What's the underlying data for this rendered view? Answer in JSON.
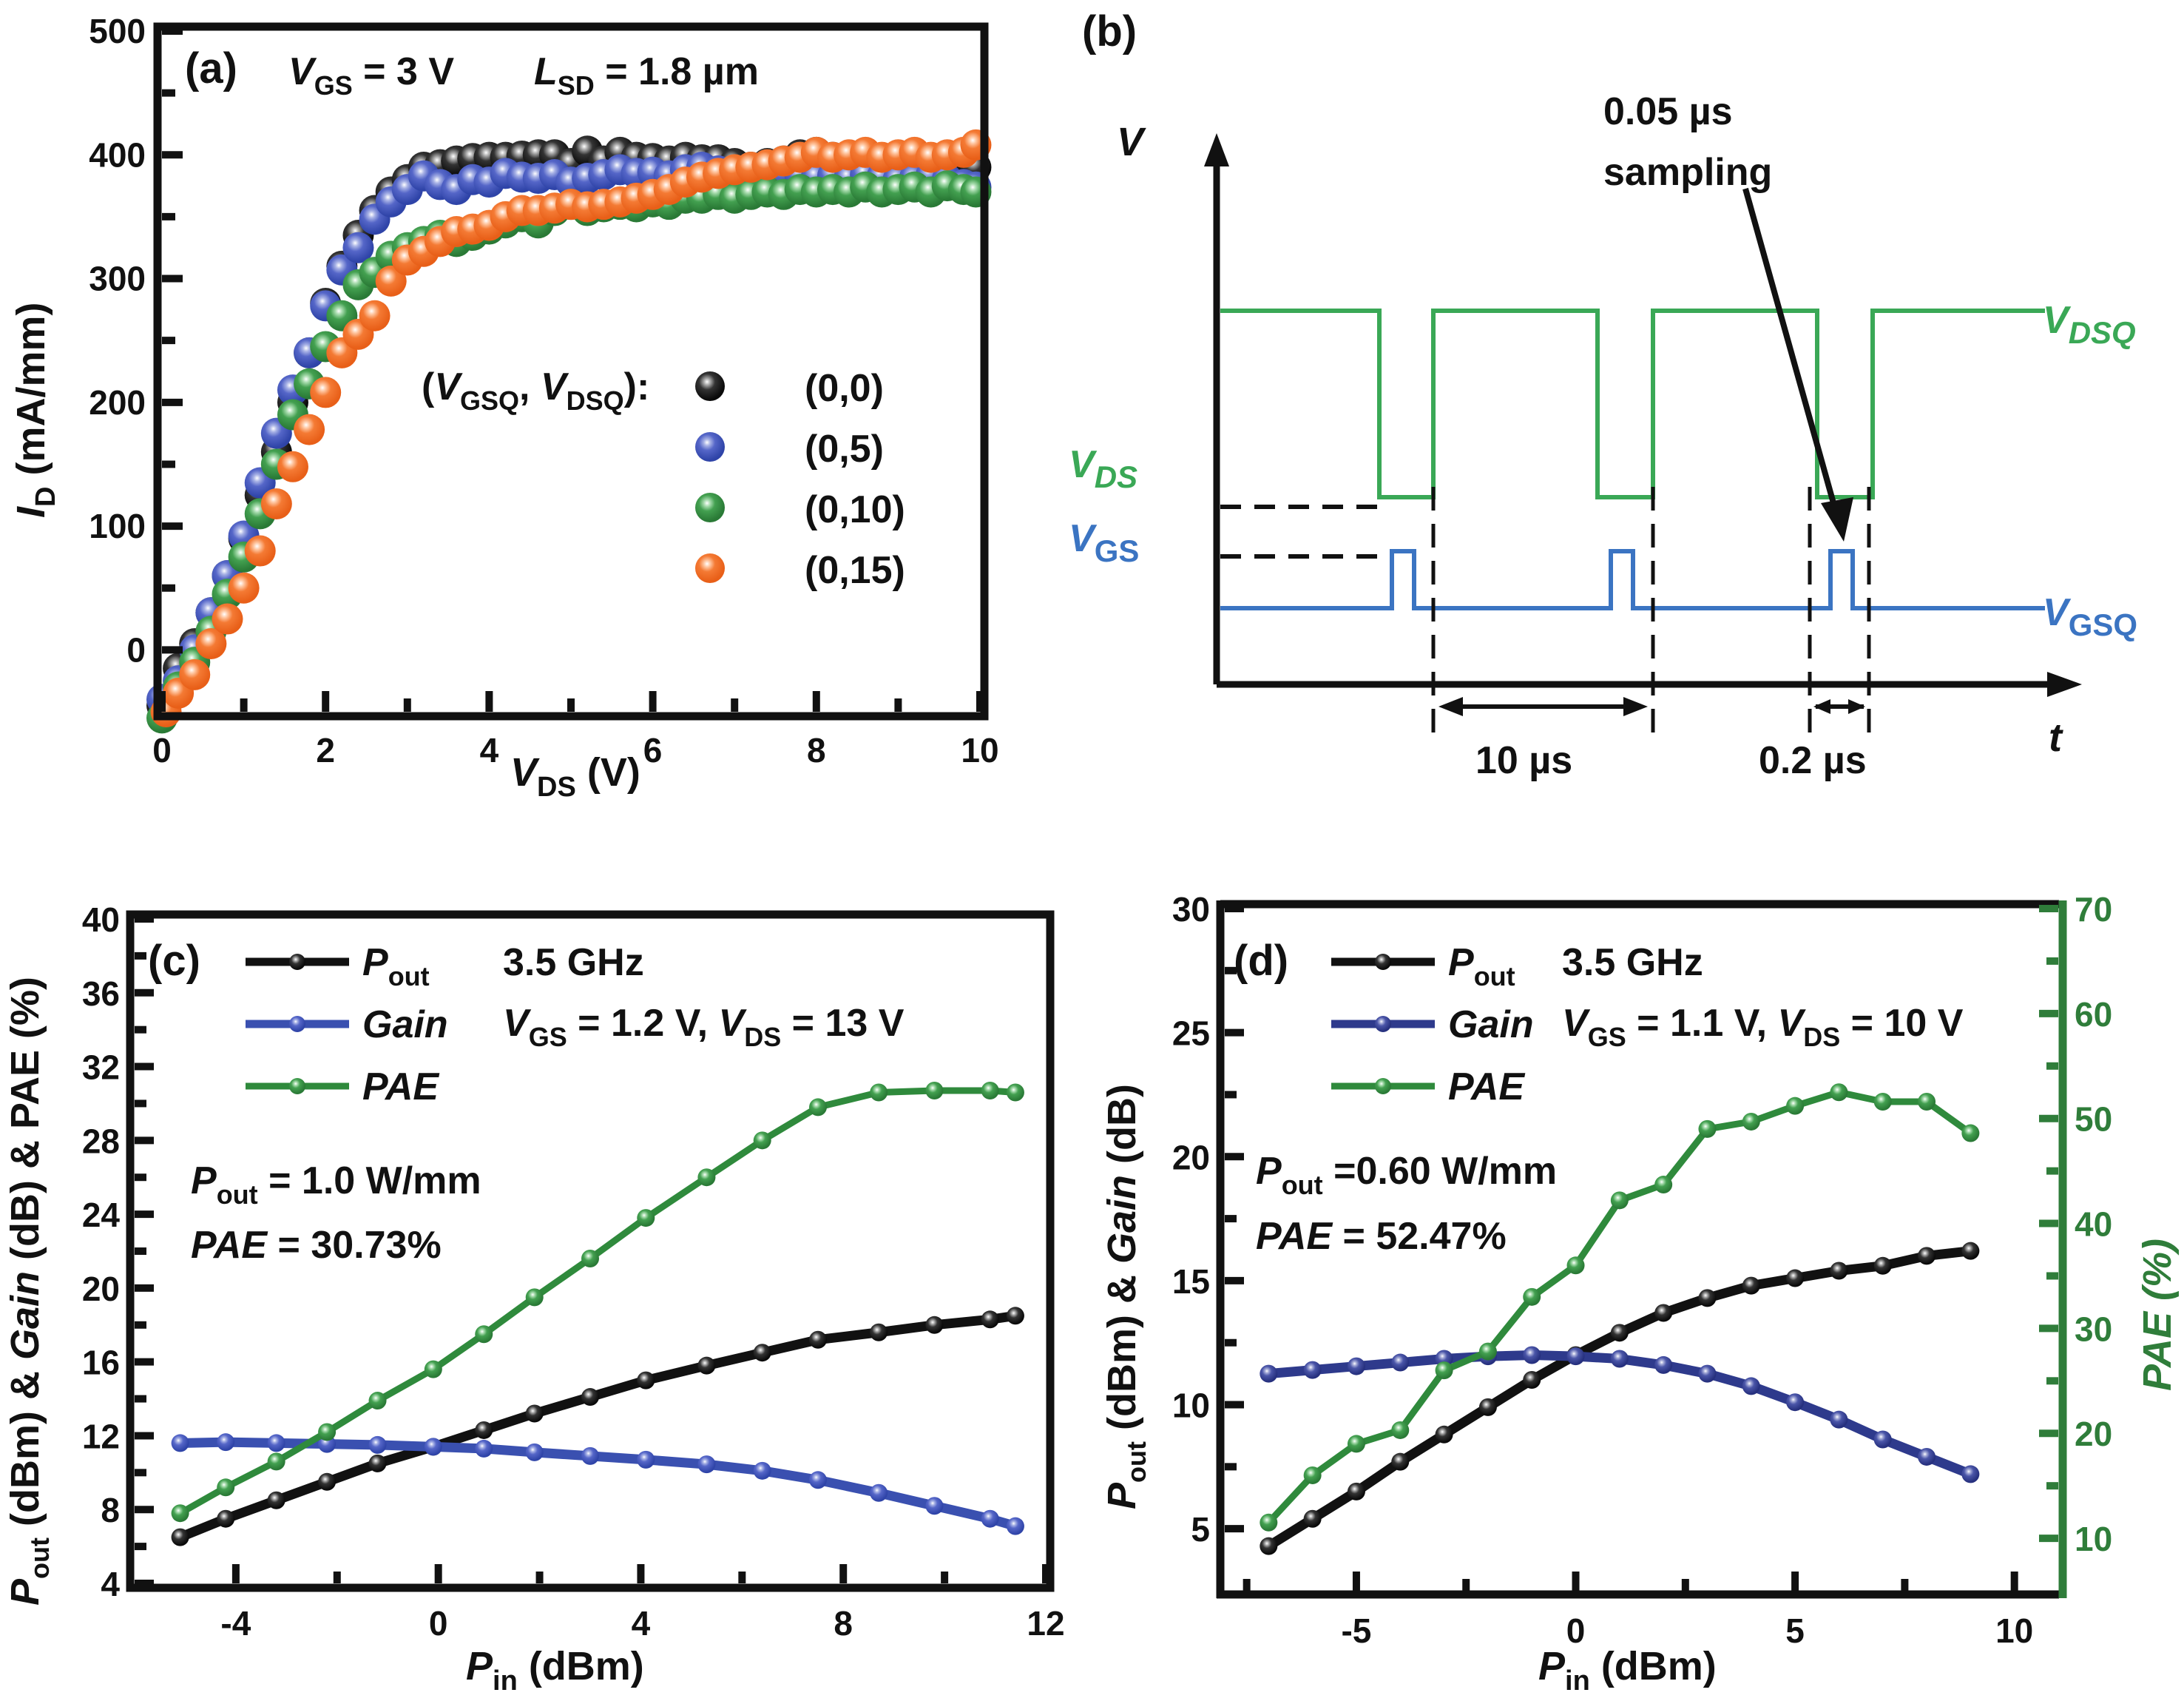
{
  "figure": {
    "panels": [
      {
        "id": "a",
        "label": "(a)"
      },
      {
        "id": "b",
        "label": "(b)"
      },
      {
        "id": "c",
        "label": "(c)"
      },
      {
        "id": "d",
        "label": "(d)"
      }
    ]
  },
  "chart_data": [
    {
      "panel": "a",
      "type": "scatter",
      "title": "",
      "annotation": {
        "vgs": "V_GS = 3 V",
        "lsd": "L_SD = 1.8 µm"
      },
      "annotation_parts": {
        "v": "V",
        "gs": "GS",
        "vgs_val": " = 3 V",
        "l": "L",
        "sd": "SD",
        "lsd_val": " = 1.8 µm"
      },
      "xlabel": "V_DS (V)",
      "xlabel_parts": {
        "main": "V",
        "sub": "DS",
        "unit": " (V)"
      },
      "ylabel": "I_D (mA/mm)",
      "ylabel_parts": {
        "main": "I",
        "sub": "D",
        "unit": " (mA/mm)"
      },
      "xlim": [
        0,
        10
      ],
      "ylim": [
        -50,
        500
      ],
      "xticks": [
        0,
        2,
        4,
        6,
        8,
        10
      ],
      "yticks": [
        0,
        100,
        200,
        300,
        400,
        500
      ],
      "legend_title": "(V_GSQ, V_DSQ):",
      "legend_title_parts": {
        "open": "(",
        "v1": "V",
        "s1": "GSQ",
        "sep": ", ",
        "v2": "V",
        "s2": "DSQ",
        "close": "):"
      },
      "legend_position": "center-right",
      "series": [
        {
          "name": "(0,0)",
          "color": "#111111",
          "x": [
            0.0,
            0.2,
            0.4,
            0.6,
            0.8,
            1.0,
            1.2,
            1.4,
            1.6,
            1.8,
            2.0,
            2.2,
            2.4,
            2.6,
            2.8,
            3.0,
            3.2,
            3.4,
            3.6,
            3.8,
            4.0,
            4.2,
            4.4,
            4.6,
            4.8,
            5.0,
            5.2,
            5.4,
            5.6,
            5.8,
            6.0,
            6.2,
            6.4,
            6.6,
            6.8,
            7.0,
            7.2,
            7.4,
            7.6,
            7.8,
            8.0,
            8.2,
            8.4,
            8.6,
            8.8,
            9.0,
            9.2,
            9.4,
            9.6,
            9.8,
            9.95
          ],
          "y": [
            -45,
            -15,
            5,
            30,
            60,
            90,
            125,
            160,
            200,
            240,
            280,
            310,
            335,
            355,
            370,
            380,
            390,
            392,
            395,
            397,
            398,
            398,
            399,
            400,
            400,
            393,
            403,
            395,
            402,
            398,
            397,
            395,
            398,
            396,
            396,
            393,
            390,
            393,
            395,
            400,
            402,
            398,
            396,
            395,
            392,
            393,
            395,
            394,
            397,
            398,
            390
          ]
        },
        {
          "name": "(0,5)",
          "color": "#3a50b0",
          "x": [
            0.0,
            0.2,
            0.4,
            0.6,
            0.8,
            1.0,
            1.2,
            1.4,
            1.6,
            1.8,
            2.0,
            2.2,
            2.4,
            2.6,
            2.8,
            3.0,
            3.2,
            3.4,
            3.6,
            3.8,
            4.0,
            4.2,
            4.4,
            4.6,
            4.8,
            5.0,
            5.2,
            5.4,
            5.6,
            5.8,
            6.0,
            6.2,
            6.4,
            6.6,
            6.8,
            7.0,
            7.2,
            7.4,
            7.6,
            7.8,
            8.0,
            8.2,
            8.4,
            8.6,
            8.8,
            9.0,
            9.2,
            9.4,
            9.6,
            9.8,
            9.95
          ],
          "y": [
            -40,
            -25,
            0,
            30,
            60,
            92,
            135,
            175,
            210,
            240,
            278,
            307,
            325,
            348,
            362,
            372,
            383,
            376,
            372,
            380,
            378,
            385,
            382,
            381,
            384,
            378,
            381,
            384,
            388,
            385,
            386,
            383,
            388,
            390,
            387,
            385,
            384,
            386,
            385,
            383,
            382,
            383,
            381,
            384,
            382,
            380,
            381,
            383,
            380,
            376,
            374
          ]
        },
        {
          "name": "(0,10)",
          "color": "#2f8a3c",
          "x": [
            0.0,
            0.2,
            0.4,
            0.6,
            0.8,
            1.0,
            1.2,
            1.4,
            1.6,
            1.8,
            2.0,
            2.2,
            2.4,
            2.6,
            2.8,
            3.0,
            3.2,
            3.4,
            3.6,
            3.8,
            4.0,
            4.2,
            4.4,
            4.6,
            4.8,
            5.0,
            5.2,
            5.4,
            5.6,
            5.8,
            6.0,
            6.2,
            6.4,
            6.6,
            6.8,
            7.0,
            7.2,
            7.4,
            7.6,
            7.8,
            8.0,
            8.2,
            8.4,
            8.6,
            8.8,
            9.0,
            9.2,
            9.4,
            9.6,
            9.8,
            9.95
          ],
          "y": [
            -55,
            -30,
            -10,
            15,
            45,
            75,
            110,
            150,
            190,
            215,
            245,
            270,
            295,
            305,
            318,
            325,
            330,
            335,
            330,
            335,
            340,
            345,
            350,
            345,
            355,
            360,
            355,
            358,
            360,
            358,
            362,
            360,
            365,
            365,
            368,
            365,
            368,
            370,
            368,
            372,
            370,
            372,
            370,
            374,
            370,
            372,
            374,
            370,
            375,
            372,
            370
          ]
        },
        {
          "name": "(0,15)",
          "color": "#f07028",
          "x": [
            0.05,
            0.2,
            0.4,
            0.6,
            0.8,
            1.0,
            1.2,
            1.4,
            1.6,
            1.8,
            2.0,
            2.2,
            2.4,
            2.6,
            2.8,
            3.0,
            3.2,
            3.4,
            3.6,
            3.8,
            4.0,
            4.2,
            4.4,
            4.6,
            4.8,
            5.0,
            5.2,
            5.4,
            5.6,
            5.8,
            6.0,
            6.2,
            6.4,
            6.6,
            6.8,
            7.0,
            7.2,
            7.4,
            7.6,
            7.8,
            8.0,
            8.2,
            8.4,
            8.6,
            8.8,
            9.0,
            9.2,
            9.4,
            9.6,
            9.8,
            9.95
          ],
          "y": [
            -50,
            -35,
            -20,
            5,
            25,
            50,
            80,
            118,
            148,
            178,
            208,
            240,
            255,
            270,
            298,
            315,
            322,
            330,
            338,
            340,
            343,
            350,
            355,
            355,
            357,
            360,
            358,
            360,
            362,
            365,
            368,
            372,
            378,
            382,
            385,
            388,
            390,
            392,
            395,
            398,
            402,
            398,
            400,
            402,
            398,
            400,
            402,
            398,
            400,
            402,
            408
          ]
        }
      ]
    },
    {
      "panel": "b",
      "type": "diagram",
      "title": "",
      "xlabel": "t",
      "ylabel": "V",
      "annotations": {
        "sampling_line1": "0.05 µs",
        "sampling_line2": "sampling",
        "period": "10 µs",
        "pulse": "0.2 µs"
      },
      "signal_labels": {
        "vds": {
          "main": "V",
          "sub": "DS"
        },
        "vgs": {
          "main": "V",
          "sub": "GS"
        },
        "vdsq": {
          "main": "V",
          "sub": "DSQ"
        },
        "vgsq": {
          "main": "V",
          "sub": "GSQ"
        }
      },
      "colors": {
        "vds": "#3aa856",
        "vgs": "#3b74c2",
        "axis": "#111111"
      },
      "pulse_count": 3
    },
    {
      "panel": "c",
      "type": "line",
      "title": "",
      "xlabel": "P_in (dBm)",
      "xlabel_parts": {
        "main": "P",
        "sub": "in",
        "unit": " (dBm)"
      },
      "ylabel": "P_out (dBm) & Gain (dB) & PAE (%)",
      "ylabel_parts": {
        "p": "P",
        "sub": "out",
        "rest1": " (dBm) & ",
        "gain": "Gain",
        "rest2": " (dB) & PAE (%)"
      },
      "xlim": [
        -6,
        12
      ],
      "ylim": [
        4,
        40
      ],
      "xticks": [
        -4,
        0,
        4,
        8,
        12
      ],
      "xtick_labels": [
        "-4",
        "0",
        "4",
        "8",
        "12"
      ],
      "yticks": [
        4,
        8,
        12,
        16,
        20,
        24,
        28,
        32,
        36,
        40
      ],
      "legend_position": "top-left",
      "annotations": {
        "freq": "3.5 GHz",
        "bias_parts": {
          "v1": "V",
          "s1": "GS",
          "t1": " = 1.2 V, ",
          "v2": "V",
          "s2": "DS",
          "t2": " = 13 V"
        },
        "pout_parts": {
          "p": "P",
          "sub": "out",
          "val": " = 1.0 W/mm"
        },
        "pae_parts": {
          "p": "PAE",
          "val": " = 30.73%"
        }
      },
      "x": [
        -5.1,
        -4.2,
        -3.2,
        -2.2,
        -1.2,
        -0.1,
        0.9,
        1.9,
        3.0,
        4.1,
        5.3,
        6.4,
        7.5,
        8.7,
        9.8,
        10.9,
        11.4
      ],
      "series": [
        {
          "name": "Pout",
          "label_main": "P",
          "label_sub": "out",
          "color": "#111111",
          "values": [
            6.5,
            7.5,
            8.5,
            9.5,
            10.5,
            11.4,
            12.3,
            13.2,
            14.1,
            15.0,
            15.8,
            16.5,
            17.2,
            17.6,
            18.0,
            18.3,
            18.5
          ]
        },
        {
          "name": "Gain",
          "label_main": "Gain",
          "label_sub": "",
          "color": "#3a50b0",
          "values": [
            11.6,
            11.65,
            11.6,
            11.55,
            11.5,
            11.4,
            11.3,
            11.1,
            10.9,
            10.7,
            10.45,
            10.1,
            9.6,
            8.9,
            8.2,
            7.5,
            7.1
          ]
        },
        {
          "name": "PAE",
          "label_main": "PAE",
          "label_sub": "",
          "color": "#2f8a3c",
          "values": [
            7.8,
            9.2,
            10.6,
            12.2,
            13.9,
            15.6,
            17.5,
            19.5,
            21.6,
            23.8,
            26.0,
            28.0,
            29.8,
            30.6,
            30.7,
            30.7,
            30.6
          ]
        }
      ]
    },
    {
      "panel": "d",
      "type": "line",
      "title": "",
      "xlabel": "P_in (dBm)",
      "xlabel_parts": {
        "main": "P",
        "sub": "in",
        "unit": " (dBm)"
      },
      "ylabel": "P_out (dBm) & Gain (dB)",
      "ylabel_parts": {
        "p": "P",
        "sub": "out",
        "rest1": " (dBm) & ",
        "gain": "Gain",
        "rest2": " (dB)"
      },
      "y2label": "PAE (%)",
      "xlim": [
        -8,
        11
      ],
      "ylim": [
        2.5,
        30
      ],
      "y2lim": [
        5,
        70
      ],
      "xticks": [
        -5,
        0,
        5,
        10
      ],
      "xtick_labels": [
        "-5",
        "0",
        "5",
        "10"
      ],
      "yticks": [
        5,
        10,
        15,
        20,
        25,
        30
      ],
      "y2ticks": [
        10,
        20,
        30,
        40,
        50,
        60,
        70
      ],
      "legend_position": "top-left",
      "annotations": {
        "freq": "3.5 GHz",
        "bias_parts": {
          "v1": "V",
          "s1": "GS",
          "t1": " = 1.1 V, ",
          "v2": "V",
          "s2": "DS",
          "t2": " = 10 V"
        },
        "pout_parts": {
          "p": "P",
          "sub": "out",
          "val": " =0.60 W/mm"
        },
        "pae_parts": {
          "p": "PAE",
          "val": " = 52.47%"
        }
      },
      "x": [
        -7,
        -6,
        -5,
        -4,
        -3,
        -2,
        -1,
        0,
        1,
        2,
        3,
        4,
        5,
        6,
        7,
        8,
        9
      ],
      "series": [
        {
          "name": "Pout",
          "label_main": "P",
          "label_sub": "out",
          "color": "#111111",
          "axis": "left",
          "values": [
            4.3,
            5.4,
            6.5,
            7.7,
            8.8,
            9.9,
            11.0,
            12.0,
            12.9,
            13.7,
            14.3,
            14.8,
            15.1,
            15.4,
            15.6,
            16.0,
            16.2
          ]
        },
        {
          "name": "Gain",
          "label_main": "Gain",
          "label_sub": "",
          "color": "#2e3a8c",
          "axis": "left",
          "values": [
            11.25,
            11.4,
            11.55,
            11.7,
            11.85,
            11.95,
            12.0,
            11.95,
            11.85,
            11.6,
            11.25,
            10.75,
            10.1,
            9.4,
            8.6,
            7.9,
            7.2
          ]
        },
        {
          "name": "PAE",
          "label_main": "PAE",
          "label_sub": "",
          "color": "#2f8a3c",
          "axis": "right",
          "values": [
            11.5,
            16.0,
            19.0,
            20.3,
            26.0,
            27.8,
            33.0,
            36.0,
            42.2,
            43.7,
            49.0,
            49.7,
            51.2,
            52.5,
            51.6,
            51.6,
            48.6
          ]
        }
      ]
    }
  ]
}
